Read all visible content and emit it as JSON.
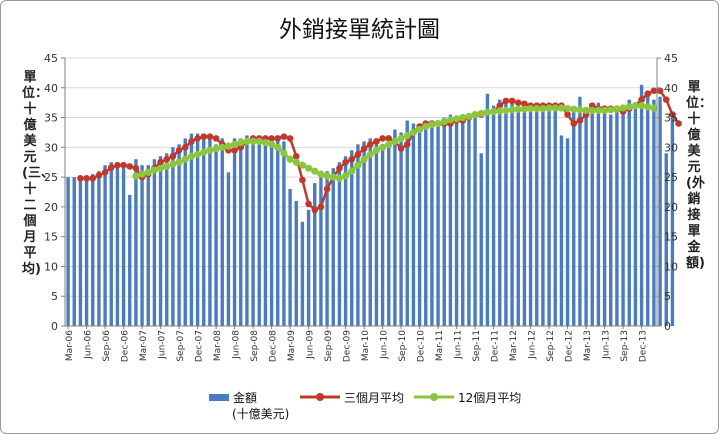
{
  "title": "外銷接單統計圖",
  "ylabel_left": "單位：十億美元(三、十二個月平均)",
  "ylabel_right": "單位：十億美元(外銷接單金額)",
  "legend": {
    "bar_label": "金額",
    "bar_sublabel": "(十億美元)",
    "avg3_label": "三個月平均",
    "avg12_label": "12個月平均"
  },
  "colors": {
    "bar": "#4a7bc0",
    "avg3": "#c0392b",
    "avg12": "#8cc63f"
  },
  "chart_data": {
    "type": "bar",
    "ylim": [
      0,
      45
    ],
    "yticks": [
      0,
      5,
      10,
      15,
      20,
      25,
      30,
      35,
      40,
      45
    ],
    "tick_labels": [
      "Mar-06",
      "Jun-06",
      "Sep-06",
      "Dec-06",
      "Mar-07",
      "Jun-07",
      "Sep-07",
      "Dec-07",
      "Mar-08",
      "Jun-08",
      "Sep-08",
      "Dec-08",
      "Mar-09",
      "Jun-09",
      "Sep-09",
      "Dec-09",
      "Mar-10",
      "Jun-10",
      "Sep-10",
      "Dec-10",
      "Mar-11",
      "Jun-11",
      "Sep-11",
      "Dec-11",
      "Mar-12",
      "Jun-12",
      "Sep-12",
      "Dec-12",
      "Mar-13",
      "Jun-13",
      "Sep-13",
      "Dec-13"
    ],
    "series": [
      {
        "name": "金額",
        "type": "bar",
        "values": [
          25,
          25,
          24.5,
          24.8,
          25.5,
          26,
          27,
          27.5,
          27,
          26.5,
          22,
          28,
          27,
          27,
          28,
          28.5,
          29,
          30,
          30.5,
          31.5,
          32.3,
          32.3,
          31.5,
          32,
          30.5,
          31.5,
          25.8,
          31.5,
          31.5,
          32,
          31.5,
          31.5,
          31,
          31.5,
          32,
          31,
          23,
          21,
          17.5,
          19.5,
          24,
          25,
          26,
          26.5,
          27.5,
          28.5,
          29.5,
          30.5,
          31,
          31.5,
          31.5,
          30.5,
          32,
          33,
          32.5,
          34.5,
          34,
          34,
          34.5,
          34.5,
          34.5,
          35,
          35.5,
          34.5,
          34.5,
          35,
          35.5,
          29,
          39,
          37,
          38,
          37.5,
          37.5,
          36.5,
          37,
          37,
          37,
          37.5,
          37,
          37,
          32,
          31.5,
          36.5,
          38.5,
          36,
          36.5,
          37.5,
          37,
          35.5,
          36.5,
          37,
          38,
          37.5,
          40.5,
          39,
          38,
          38.5,
          29,
          35.5
        ]
      },
      {
        "name": "三個月平均",
        "type": "line",
        "values": [
          null,
          null,
          24.8,
          24.8,
          24.8,
          25.3,
          25.8,
          26.6,
          27,
          27,
          26.8,
          26.5,
          25,
          25.5,
          26.5,
          27.5,
          28,
          28.5,
          29.5,
          30,
          31,
          31.5,
          31.8,
          31.8,
          31.5,
          30.5,
          29.5,
          29.5,
          30,
          31,
          31.5,
          31.5,
          31.5,
          31.5,
          31.5,
          31.8,
          31.5,
          28.5,
          24.5,
          20.5,
          19.5,
          20,
          23,
          25,
          26.5,
          27.5,
          28,
          28.8,
          29.8,
          30.5,
          31,
          31.5,
          31.5,
          31,
          29.8,
          30.5,
          32.5,
          33.5,
          34,
          34,
          34,
          34,
          34,
          34.5,
          34.5,
          35,
          35.5,
          35.5,
          35.8,
          36,
          37,
          37.8,
          37.8,
          37.5,
          37.3,
          37,
          37,
          37,
          37,
          37,
          37,
          35.5,
          34,
          34.5,
          35.5,
          37,
          36.5,
          36.5,
          36.5,
          36.5,
          36,
          36.5,
          37,
          38,
          39,
          39.5,
          39.5,
          38,
          35.5,
          34
        ]
      },
      {
        "name": "12個月平均",
        "type": "line",
        "values": [
          null,
          null,
          null,
          null,
          null,
          null,
          null,
          null,
          null,
          null,
          null,
          25.2,
          25.5,
          25.8,
          26.2,
          26.5,
          26.8,
          27.2,
          27.5,
          28,
          28.5,
          28.8,
          29.2,
          29.5,
          29.8,
          30,
          30.2,
          30.5,
          30.8,
          31,
          31,
          31,
          30.8,
          30.5,
          30,
          29,
          28,
          27.5,
          27,
          26.5,
          26,
          25.5,
          25.2,
          25,
          24.8,
          25.2,
          26,
          27,
          28,
          28.8,
          29.5,
          30,
          30.5,
          31,
          31.5,
          32,
          32.5,
          33,
          33.5,
          33.8,
          34,
          34.3,
          34.6,
          34.8,
          35,
          35.2,
          35.5,
          35.7,
          35.9,
          36,
          36.1,
          36.2,
          36.3,
          36.4,
          36.4,
          36.5,
          36.5,
          36.5,
          36.6,
          36.6,
          36.6,
          36.5,
          36.4,
          36.3,
          36.2,
          36.2,
          36.2,
          36.2,
          36.3,
          36.4,
          36.6,
          36.8,
          37,
          37,
          36.8,
          36.6
        ]
      }
    ]
  }
}
